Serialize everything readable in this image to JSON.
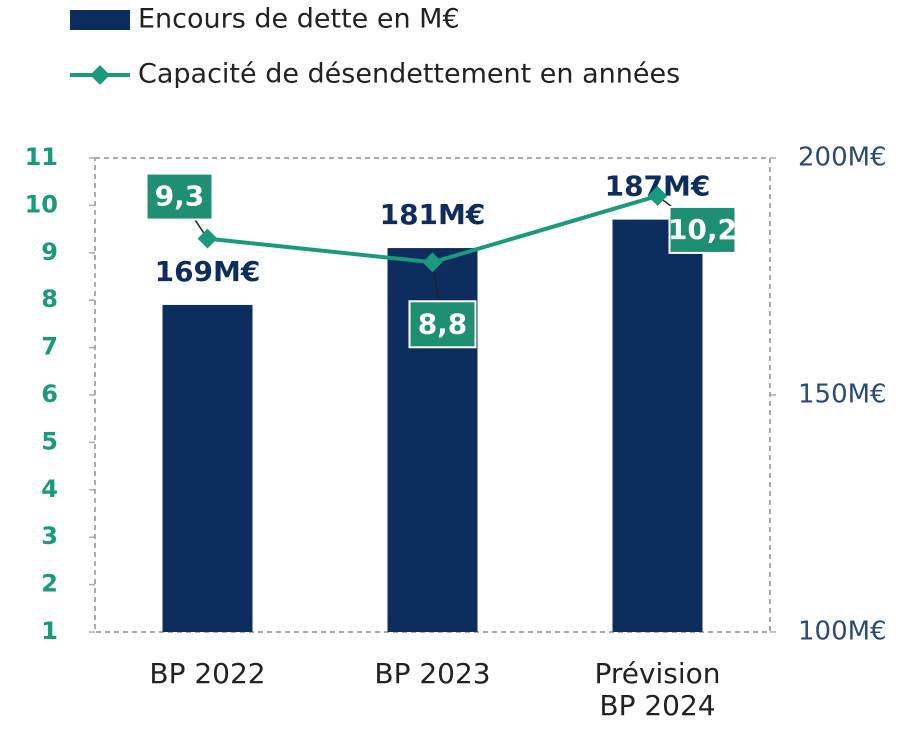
{
  "chart_data": {
    "type": "combo",
    "categories": [
      "BP 2022",
      "BP 2023",
      "Prévision\nBP 2024"
    ],
    "series": [
      {
        "name": "Encours de dette en M€",
        "type": "bar",
        "axis": "y2",
        "color": "#0d2d5e",
        "values": [
          169,
          181,
          187
        ],
        "value_labels": [
          "169M€",
          "181M€",
          "187M€"
        ]
      },
      {
        "name": "Capacité de désendettement en années",
        "type": "line",
        "axis": "y",
        "color": "#1a9a7c",
        "values": [
          9.3,
          8.8,
          10.2
        ],
        "value_labels": [
          "9,3",
          "8,8",
          "10,2"
        ]
      }
    ],
    "ylim": [
      1,
      11
    ],
    "yticks": [
      1,
      2,
      3,
      4,
      5,
      6,
      7,
      8,
      9,
      10,
      11
    ],
    "y2lim": [
      100,
      200
    ],
    "y2ticks": [
      {
        "value": 100,
        "label": "100M€"
      },
      {
        "value": 150,
        "label": "150M€"
      },
      {
        "value": 200,
        "label": "200M€"
      }
    ],
    "legend": "top-left"
  }
}
